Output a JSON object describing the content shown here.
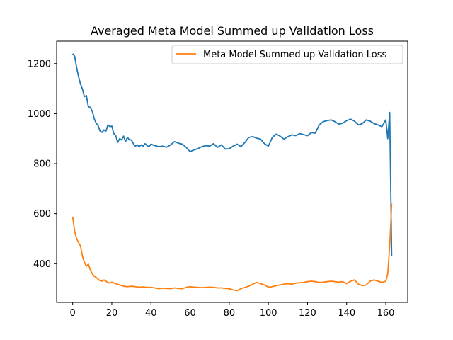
{
  "chart_data": {
    "type": "line",
    "title": "Averaged Meta Model Summed up Validation Loss",
    "xlabel": "",
    "ylabel": "",
    "xlim": [
      -8.2,
      171.2
    ],
    "ylim": [
      245,
      1290
    ],
    "x_ticks": [
      0,
      20,
      40,
      60,
      80,
      100,
      120,
      140,
      160
    ],
    "y_ticks": [
      400,
      600,
      800,
      1000,
      1200
    ],
    "grid": false,
    "legend": {
      "placement": "top-right",
      "entries": [
        "Meta Model Summed up Validation Loss"
      ]
    },
    "series": [
      {
        "name": "",
        "color": "#1f77b4",
        "x": [
          0,
          1,
          2,
          3,
          4,
          5,
          6,
          7,
          8,
          9,
          10,
          11,
          12,
          13,
          14,
          15,
          16,
          17,
          18,
          19,
          20,
          21,
          22,
          23,
          24,
          25,
          26,
          27,
          28,
          29,
          30,
          31,
          32,
          33,
          34,
          35,
          36,
          37,
          38,
          39,
          40,
          42,
          44,
          46,
          48,
          50,
          52,
          54,
          56,
          58,
          60,
          62,
          64,
          66,
          68,
          70,
          72,
          74,
          76,
          78,
          80,
          82,
          84,
          86,
          88,
          90,
          92,
          94,
          96,
          98,
          100,
          102,
          104,
          106,
          108,
          110,
          112,
          114,
          116,
          118,
          120,
          122,
          124,
          126,
          128,
          130,
          132,
          134,
          136,
          138,
          140,
          142,
          144,
          146,
          148,
          150,
          152,
          154,
          156,
          158,
          160,
          161,
          162,
          163
        ],
        "values": [
          1240,
          1230,
          1185,
          1148,
          1118,
          1098,
          1068,
          1072,
          1028,
          1025,
          1010,
          980,
          962,
          952,
          930,
          925,
          935,
          930,
          955,
          948,
          950,
          920,
          912,
          885,
          900,
          895,
          910,
          888,
          905,
          895,
          895,
          880,
          870,
          875,
          868,
          875,
          870,
          880,
          872,
          868,
          878,
          872,
          868,
          870,
          866,
          875,
          888,
          882,
          878,
          865,
          848,
          855,
          860,
          868,
          872,
          870,
          880,
          865,
          875,
          858,
          860,
          870,
          878,
          868,
          885,
          905,
          908,
          902,
          898,
          880,
          870,
          905,
          918,
          910,
          898,
          908,
          915,
          912,
          920,
          916,
          912,
          924,
          922,
          955,
          968,
          972,
          975,
          968,
          958,
          962,
          972,
          978,
          970,
          955,
          960,
          975,
          970,
          960,
          955,
          948,
          975,
          900,
          1005,
          430
        ]
      },
      {
        "name": "Meta Model Summed up Validation Loss",
        "color": "#ff7f0e",
        "x": [
          0,
          1,
          2,
          3,
          4,
          5,
          6,
          7,
          8,
          9,
          10,
          11,
          12,
          13,
          14,
          15,
          16,
          17,
          18,
          19,
          20,
          22,
          24,
          26,
          28,
          30,
          32,
          34,
          36,
          38,
          40,
          42,
          44,
          46,
          48,
          50,
          52,
          54,
          56,
          58,
          60,
          62,
          64,
          66,
          68,
          70,
          72,
          74,
          76,
          78,
          80,
          82,
          84,
          86,
          88,
          90,
          92,
          94,
          96,
          98,
          100,
          102,
          104,
          106,
          108,
          110,
          112,
          114,
          116,
          118,
          120,
          122,
          124,
          126,
          128,
          130,
          132,
          134,
          136,
          138,
          140,
          142,
          144,
          146,
          148,
          150,
          152,
          154,
          156,
          158,
          160,
          161,
          162,
          163
        ],
        "values": [
          588,
          530,
          500,
          485,
          470,
          430,
          405,
          390,
          398,
          375,
          360,
          350,
          345,
          338,
          332,
          330,
          335,
          330,
          325,
          322,
          326,
          320,
          315,
          310,
          308,
          310,
          308,
          306,
          307,
          305,
          305,
          303,
          300,
          302,
          301,
          300,
          303,
          301,
          300,
          305,
          308,
          306,
          305,
          304,
          305,
          306,
          305,
          303,
          303,
          301,
          300,
          295,
          292,
          300,
          305,
          310,
          318,
          325,
          320,
          315,
          306,
          308,
          312,
          315,
          318,
          320,
          318,
          322,
          324,
          325,
          328,
          330,
          328,
          325,
          326,
          328,
          330,
          328,
          326,
          328,
          320,
          330,
          335,
          318,
          312,
          315,
          330,
          335,
          330,
          325,
          330,
          360,
          470,
          640
        ]
      }
    ]
  }
}
